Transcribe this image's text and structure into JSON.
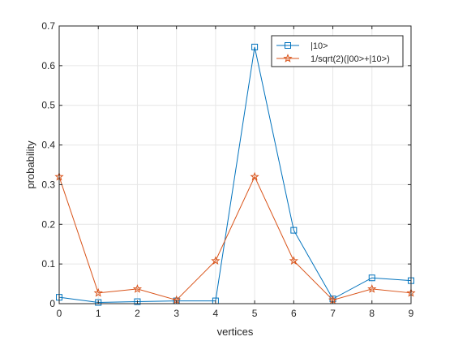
{
  "chart_data": {
    "type": "line",
    "title": "",
    "xlabel": "vertices",
    "ylabel": "probability",
    "x": [
      0,
      1,
      2,
      3,
      4,
      5,
      6,
      7,
      8,
      9
    ],
    "xlim": [
      0,
      9
    ],
    "ylim": [
      0,
      0.7
    ],
    "xticks": [
      "0",
      "1",
      "2",
      "3",
      "4",
      "5",
      "6",
      "7",
      "8",
      "9"
    ],
    "yticks": [
      "0",
      "0.1",
      "0.2",
      "0.3",
      "0.4",
      "0.5",
      "0.6",
      "0.7"
    ],
    "grid": true,
    "legend_position": "top-right",
    "series": [
      {
        "name": "|10>",
        "color": "#0072BD",
        "marker": "square",
        "values": [
          0.016,
          0.003,
          0.005,
          0.007,
          0.007,
          0.647,
          0.185,
          0.012,
          0.065,
          0.058
        ]
      },
      {
        "name": "1/sqrt(2)(|00>+|10>)",
        "color": "#D95319",
        "marker": "star",
        "values": [
          0.32,
          0.027,
          0.037,
          0.009,
          0.108,
          0.32,
          0.108,
          0.009,
          0.037,
          0.027
        ]
      }
    ]
  }
}
